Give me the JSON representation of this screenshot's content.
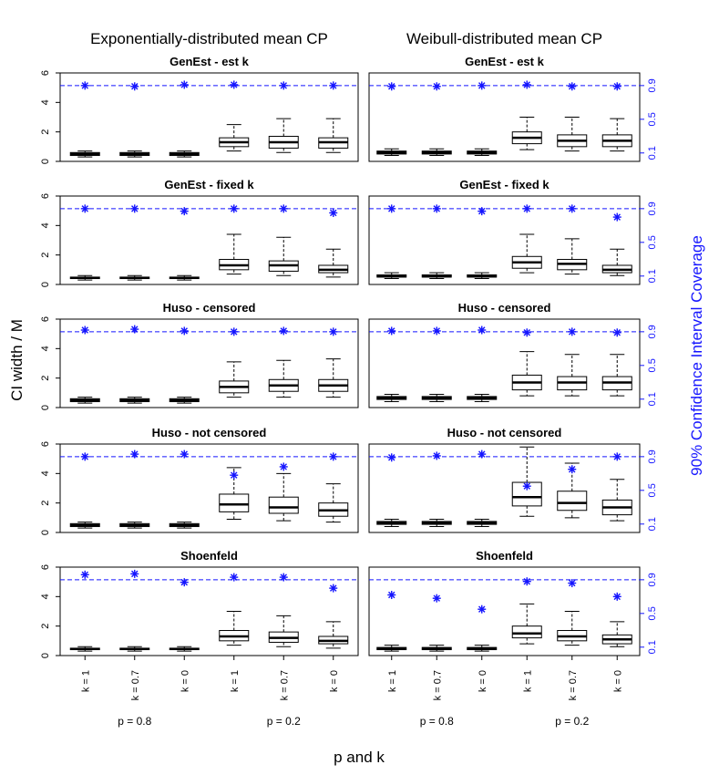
{
  "figure": {
    "column_titles": [
      "Exponentially-distributed mean CP",
      "Weibull-distributed mean CP"
    ],
    "row_titles": [
      "GenEst - est k",
      "GenEst - fixed k",
      "Huso - censored",
      "Huso - not censored",
      "Shoenfeld"
    ],
    "ylabel_left": "CI width / M",
    "ylabel_right": "90% Confidence Interval Coverage",
    "xlabel": "p and k",
    "k_labels": [
      "k = 1",
      "k = 0.7",
      "k = 0",
      "k = 1",
      "k = 0.7",
      "k = 0"
    ],
    "p_labels": [
      "p = 0.8",
      "p = 0.2"
    ],
    "left_ticks": [
      "0",
      "2",
      "4",
      "6"
    ],
    "right_ticks": [
      "0.1",
      "0.5",
      "0.9"
    ],
    "colors": {
      "boxes": "#000000",
      "coverage": "#1515ff",
      "reference_line": "#1515ff"
    }
  },
  "chart_data": {
    "type": "boxplot",
    "reference_coverage": 0.9,
    "left_axis": {
      "label": "CI width / M",
      "ylim": [
        0,
        6
      ],
      "ticks": [
        0,
        2,
        4,
        6
      ]
    },
    "right_axis": {
      "label": "90% Confidence Interval Coverage",
      "ylim": [
        0,
        1.05
      ],
      "ticks": [
        0.1,
        0.5,
        0.9
      ]
    },
    "groups": [
      "k = 1, p = 0.8",
      "k = 0.7, p = 0.8",
      "k = 0, p = 0.8",
      "k = 1, p = 0.2",
      "k = 0.7, p = 0.2",
      "k = 0, p = 0.2"
    ],
    "panels": [
      {
        "row": 0,
        "col": 0,
        "title": "GenEst - est k",
        "coverage": [
          0.9,
          0.89,
          0.91,
          0.91,
          0.9,
          0.9
        ],
        "boxes": [
          [
            0.3,
            0.4,
            0.5,
            0.6,
            0.7
          ],
          [
            0.3,
            0.4,
            0.5,
            0.6,
            0.7
          ],
          [
            0.3,
            0.4,
            0.5,
            0.6,
            0.7
          ],
          [
            0.7,
            1.0,
            1.3,
            1.6,
            2.5
          ],
          [
            0.6,
            0.9,
            1.3,
            1.7,
            2.9
          ],
          [
            0.6,
            0.9,
            1.3,
            1.6,
            2.9
          ]
        ]
      },
      {
        "row": 0,
        "col": 1,
        "title": "GenEst - est k",
        "coverage": [
          0.89,
          0.89,
          0.9,
          0.91,
          0.89,
          0.89
        ],
        "boxes": [
          [
            0.4,
            0.5,
            0.6,
            0.7,
            0.85
          ],
          [
            0.4,
            0.5,
            0.6,
            0.7,
            0.85
          ],
          [
            0.4,
            0.5,
            0.6,
            0.7,
            0.85
          ],
          [
            0.8,
            1.2,
            1.6,
            2.0,
            3.0
          ],
          [
            0.7,
            1.0,
            1.4,
            1.8,
            3.0
          ],
          [
            0.7,
            1.0,
            1.4,
            1.8,
            2.9
          ]
        ]
      },
      {
        "row": 1,
        "col": 0,
        "title": "GenEst - fixed k",
        "coverage": [
          0.9,
          0.9,
          0.87,
          0.9,
          0.9,
          0.85
        ],
        "boxes": [
          [
            0.3,
            0.4,
            0.45,
            0.5,
            0.6
          ],
          [
            0.3,
            0.4,
            0.45,
            0.5,
            0.6
          ],
          [
            0.3,
            0.4,
            0.45,
            0.5,
            0.6
          ],
          [
            0.7,
            1.0,
            1.3,
            1.7,
            3.4
          ],
          [
            0.6,
            0.9,
            1.3,
            1.6,
            3.2
          ],
          [
            0.5,
            0.8,
            1.0,
            1.3,
            2.4
          ]
        ]
      },
      {
        "row": 1,
        "col": 1,
        "title": "GenEst - fixed k",
        "coverage": [
          0.9,
          0.9,
          0.87,
          0.9,
          0.9,
          0.8
        ],
        "boxes": [
          [
            0.4,
            0.5,
            0.55,
            0.65,
            0.8
          ],
          [
            0.4,
            0.5,
            0.55,
            0.65,
            0.8
          ],
          [
            0.4,
            0.5,
            0.55,
            0.65,
            0.8
          ],
          [
            0.8,
            1.1,
            1.5,
            1.9,
            3.4
          ],
          [
            0.7,
            1.0,
            1.4,
            1.7,
            3.1
          ],
          [
            0.6,
            0.8,
            1.0,
            1.3,
            2.4
          ]
        ]
      },
      {
        "row": 2,
        "col": 0,
        "title": "Huso - censored",
        "coverage": [
          0.92,
          0.93,
          0.91,
          0.9,
          0.91,
          0.9
        ],
        "boxes": [
          [
            0.3,
            0.4,
            0.5,
            0.6,
            0.7
          ],
          [
            0.3,
            0.4,
            0.5,
            0.6,
            0.7
          ],
          [
            0.3,
            0.4,
            0.5,
            0.6,
            0.7
          ],
          [
            0.7,
            1.0,
            1.4,
            1.8,
            3.1
          ],
          [
            0.7,
            1.1,
            1.5,
            1.9,
            3.2
          ],
          [
            0.7,
            1.1,
            1.5,
            1.9,
            3.3
          ]
        ]
      },
      {
        "row": 2,
        "col": 1,
        "title": "Huso - censored",
        "coverage": [
          0.91,
          0.91,
          0.92,
          0.89,
          0.9,
          0.89
        ],
        "boxes": [
          [
            0.4,
            0.55,
            0.65,
            0.75,
            0.9
          ],
          [
            0.4,
            0.55,
            0.65,
            0.75,
            0.9
          ],
          [
            0.4,
            0.55,
            0.65,
            0.75,
            0.9
          ],
          [
            0.8,
            1.2,
            1.7,
            2.2,
            3.8
          ],
          [
            0.8,
            1.2,
            1.7,
            2.1,
            3.6
          ],
          [
            0.8,
            1.2,
            1.7,
            2.1,
            3.6
          ]
        ]
      },
      {
        "row": 3,
        "col": 0,
        "title": "Huso - not censored",
        "coverage": [
          0.9,
          0.93,
          0.93,
          0.68,
          0.78,
          0.9
        ],
        "boxes": [
          [
            0.3,
            0.4,
            0.5,
            0.6,
            0.7
          ],
          [
            0.3,
            0.4,
            0.5,
            0.6,
            0.7
          ],
          [
            0.3,
            0.4,
            0.5,
            0.6,
            0.7
          ],
          [
            0.9,
            1.4,
            1.9,
            2.6,
            4.4
          ],
          [
            0.8,
            1.3,
            1.7,
            2.4,
            4.0
          ],
          [
            0.7,
            1.1,
            1.5,
            2.0,
            3.3
          ]
        ]
      },
      {
        "row": 3,
        "col": 1,
        "title": "Huso - not censored",
        "coverage": [
          0.89,
          0.91,
          0.93,
          0.55,
          0.75,
          0.9
        ],
        "boxes": [
          [
            0.4,
            0.55,
            0.65,
            0.75,
            0.9
          ],
          [
            0.4,
            0.55,
            0.65,
            0.75,
            0.9
          ],
          [
            0.4,
            0.55,
            0.65,
            0.75,
            0.9
          ],
          [
            1.1,
            1.8,
            2.4,
            3.4,
            5.8
          ],
          [
            1.0,
            1.5,
            2.0,
            2.8,
            4.7
          ],
          [
            0.8,
            1.2,
            1.7,
            2.2,
            3.6
          ]
        ]
      },
      {
        "row": 4,
        "col": 0,
        "title": "Shoenfeld",
        "coverage": [
          0.96,
          0.97,
          0.87,
          0.93,
          0.93,
          0.8
        ],
        "boxes": [
          [
            0.3,
            0.4,
            0.45,
            0.5,
            0.6
          ],
          [
            0.3,
            0.4,
            0.45,
            0.5,
            0.6
          ],
          [
            0.3,
            0.4,
            0.45,
            0.5,
            0.6
          ],
          [
            0.7,
            1.0,
            1.3,
            1.7,
            3.0
          ],
          [
            0.6,
            0.9,
            1.2,
            1.6,
            2.7
          ],
          [
            0.5,
            0.8,
            1.0,
            1.3,
            2.3
          ]
        ]
      },
      {
        "row": 4,
        "col": 1,
        "title": "Shoenfeld",
        "coverage": [
          0.72,
          0.68,
          0.55,
          0.88,
          0.86,
          0.7
        ],
        "boxes": [
          [
            0.3,
            0.4,
            0.45,
            0.55,
            0.7
          ],
          [
            0.3,
            0.4,
            0.45,
            0.55,
            0.7
          ],
          [
            0.3,
            0.4,
            0.45,
            0.55,
            0.7
          ],
          [
            0.8,
            1.2,
            1.5,
            2.0,
            3.5
          ],
          [
            0.7,
            1.0,
            1.3,
            1.7,
            3.0
          ],
          [
            0.6,
            0.8,
            1.1,
            1.4,
            2.3
          ]
        ]
      }
    ]
  }
}
